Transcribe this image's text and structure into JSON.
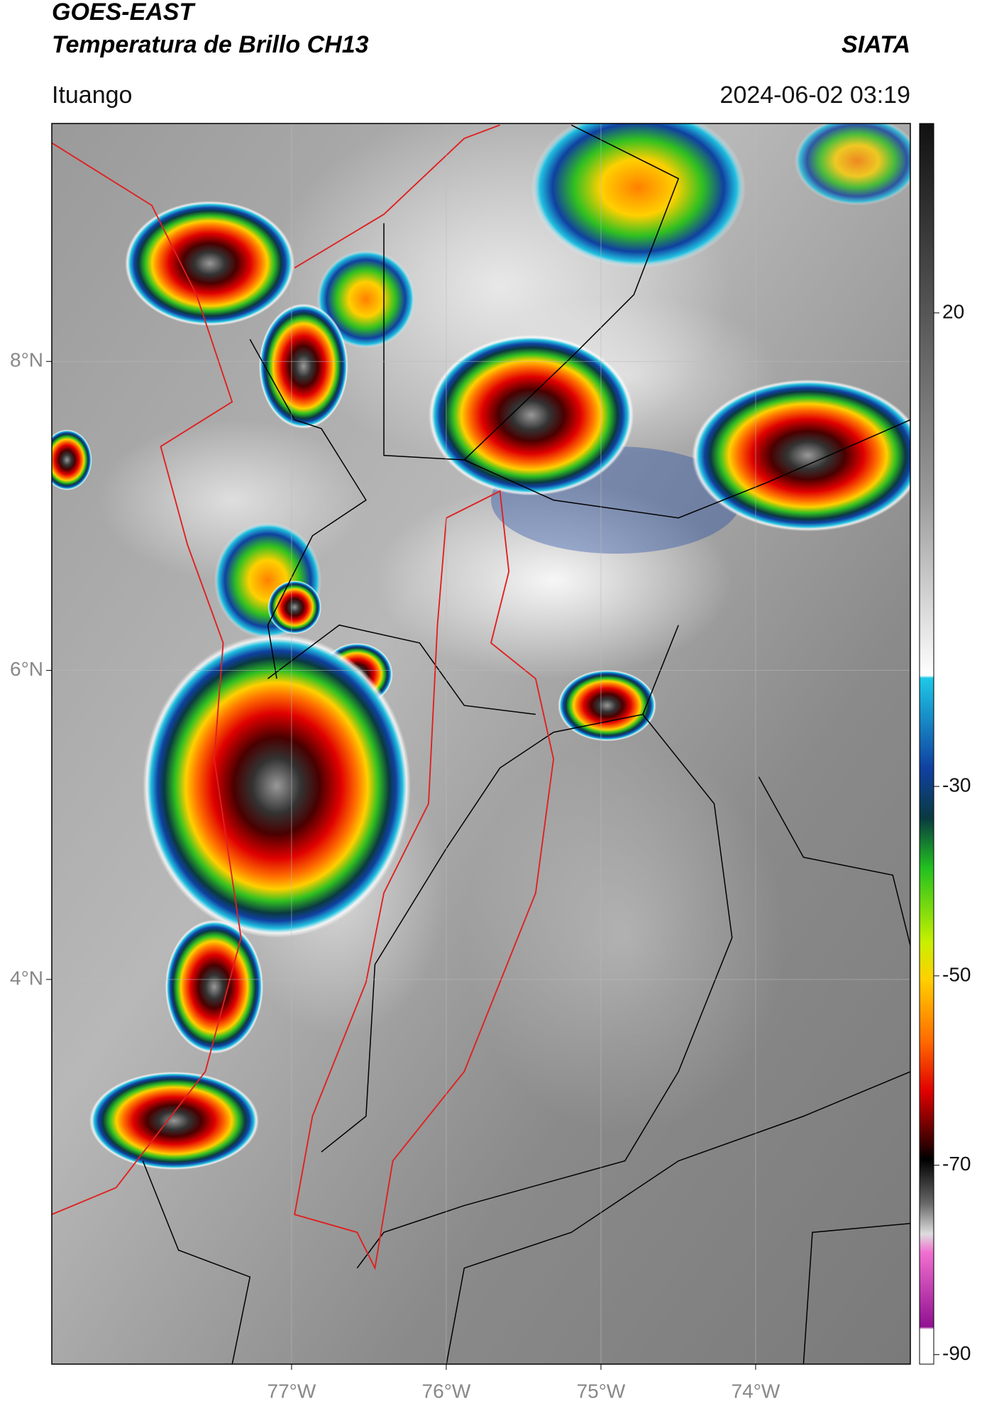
{
  "header": {
    "title": "GOES-EAST",
    "subtitle": "Temperatura de Brillo CH13",
    "source": "SIATA",
    "location": "Ituango",
    "datetime": "2024-06-02 03:19"
  },
  "map": {
    "lonlim": [
      -78.55,
      -73.0
    ],
    "latlim": [
      1.51,
      9.54
    ],
    "grid": true,
    "lonticks": [
      {
        "value": -77,
        "label": "77°W"
      },
      {
        "value": -76,
        "label": "76°W"
      },
      {
        "value": -75,
        "label": "75°W"
      },
      {
        "value": -74,
        "label": "74°W"
      }
    ],
    "latticks": [
      {
        "value": 8,
        "label": "8°N"
      },
      {
        "value": 6,
        "label": "6°N"
      },
      {
        "value": 4,
        "label": "4°N"
      }
    ]
  },
  "colorbar": {
    "lim": [
      -91,
      40
    ],
    "ticks": [
      20,
      -30,
      -50,
      -70,
      -90
    ]
  }
}
